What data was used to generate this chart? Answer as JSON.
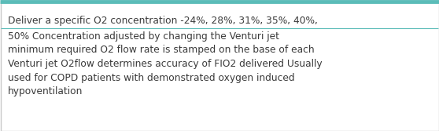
{
  "line1": "Deliver a specific O2 concentration -24%, 28%, 31%, 35%, 40%,",
  "body_text": "50% Concentration adjusted by changing the Venturi jet\nminimum required O2 flow rate is stamped on the base of each\nVenturi jet O2flow determines accuracy of FIO2 delivered Usually\nused for COPD patients with demonstrated oxygen induced\nhypoventilation",
  "bg_color": "#ffffff",
  "border_color": "#c8c8c8",
  "top_border_color": "#5bbcb8",
  "separator_color": "#5bbcb8",
  "text_color": "#3a3a3a",
  "font_size": 8.8,
  "fig_width": 5.58,
  "fig_height": 1.67,
  "dpi": 100
}
